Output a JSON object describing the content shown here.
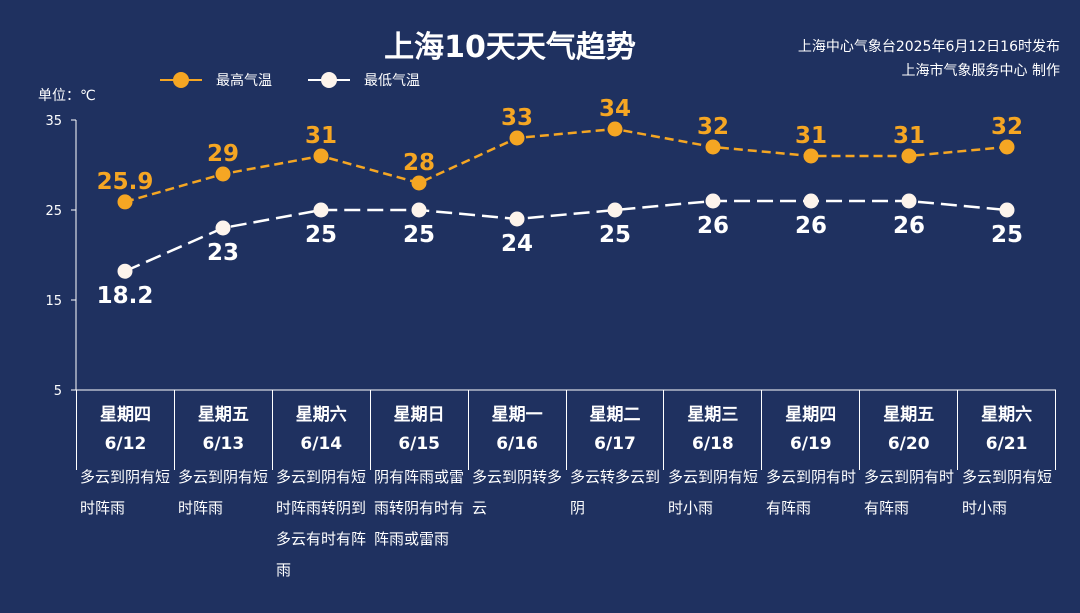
{
  "header": {
    "title": "上海10天天气趋势",
    "issuer_line1": "上海中心气象台2025年6月12日16时发布",
    "issuer_line2": "上海市气象服务中心 制作"
  },
  "legend": {
    "high_label": "最高气温",
    "low_label": "最低气温"
  },
  "unit_label": "单位：℃",
  "colors": {
    "background": "#1f3160",
    "high": "#f5a623",
    "low": "#ffffff"
  },
  "chart_data": {
    "type": "line",
    "title": "上海10天天气趋势",
    "ylabel": "单位：℃",
    "ylim": [
      5,
      35
    ],
    "yticks": [
      5,
      15,
      25,
      35
    ],
    "grid": false,
    "legend_position": "top-left",
    "categories": [
      "星期四 6/12",
      "星期五 6/13",
      "星期六 6/14",
      "星期日 6/15",
      "星期一 6/16",
      "星期二 6/17",
      "星期三 6/18",
      "星期四 6/19",
      "星期五 6/20",
      "星期六 6/21"
    ],
    "series": [
      {
        "name": "最高气温",
        "color": "#f5a623",
        "values": [
          25.9,
          29,
          31,
          28,
          33,
          34,
          32,
          31,
          31,
          32
        ]
      },
      {
        "name": "最低气温",
        "color": "#ffffff",
        "values": [
          18.2,
          23,
          25,
          25,
          24,
          25,
          26,
          26,
          26,
          25
        ]
      }
    ]
  },
  "days": [
    {
      "weekday": "星期四",
      "date": "6/12",
      "weather": "多云到阴有短时阵雨"
    },
    {
      "weekday": "星期五",
      "date": "6/13",
      "weather": "多云到阴有短时阵雨"
    },
    {
      "weekday": "星期六",
      "date": "6/14",
      "weather": "多云到阴有短时阵雨转阴到多云有时有阵雨"
    },
    {
      "weekday": "星期日",
      "date": "6/15",
      "weather": "阴有阵雨或雷雨转阴有时有阵雨或雷雨"
    },
    {
      "weekday": "星期一",
      "date": "6/16",
      "weather": "多云到阴转多云"
    },
    {
      "weekday": "星期二",
      "date": "6/17",
      "weather": "多云转多云到阴"
    },
    {
      "weekday": "星期三",
      "date": "6/18",
      "weather": "多云到阴有短时小雨"
    },
    {
      "weekday": "星期四",
      "date": "6/19",
      "weather": "多云到阴有时有阵雨"
    },
    {
      "weekday": "星期五",
      "date": "6/20",
      "weather": "多云到阴有时有阵雨"
    },
    {
      "weekday": "星期六",
      "date": "6/21",
      "weather": "多云到阴有短时小雨"
    }
  ]
}
